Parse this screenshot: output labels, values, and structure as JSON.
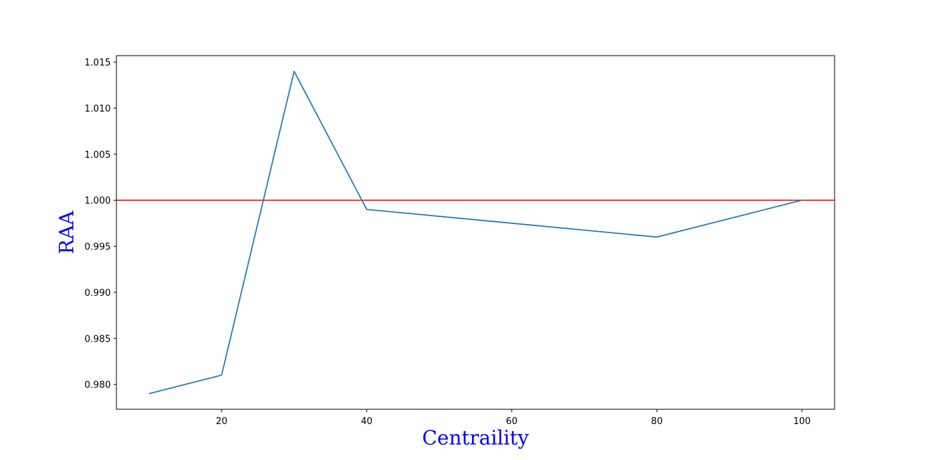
{
  "colors": {
    "line": "#1f77b4",
    "reference_line": "#ff0000",
    "axis_label": "#0000ff",
    "frame": "#000000"
  },
  "chart_data": {
    "type": "line",
    "title": "",
    "xlabel": "Centraility",
    "ylabel": "RAA",
    "x": [
      10,
      20,
      30,
      40,
      80,
      100
    ],
    "series": [
      {
        "values": [
          0.979,
          0.981,
          1.014,
          0.999,
          0.996,
          1.0
        ]
      }
    ],
    "reference_line": {
      "y": 1.0
    },
    "xlim": [
      5.5,
      104.5
    ],
    "ylim": [
      0.9773,
      1.0157
    ],
    "xticks": [
      20,
      40,
      60,
      80,
      100
    ],
    "xtick_labels": [
      "20",
      "40",
      "60",
      "80",
      "100"
    ],
    "yticks": [
      0.98,
      0.985,
      0.99,
      0.995,
      1.0,
      1.005,
      1.01,
      1.015
    ],
    "ytick_labels": [
      "0.980",
      "0.985",
      "0.990",
      "0.995",
      "1.000",
      "1.005",
      "1.010",
      "1.015"
    ],
    "grid": false,
    "legend": false
  }
}
